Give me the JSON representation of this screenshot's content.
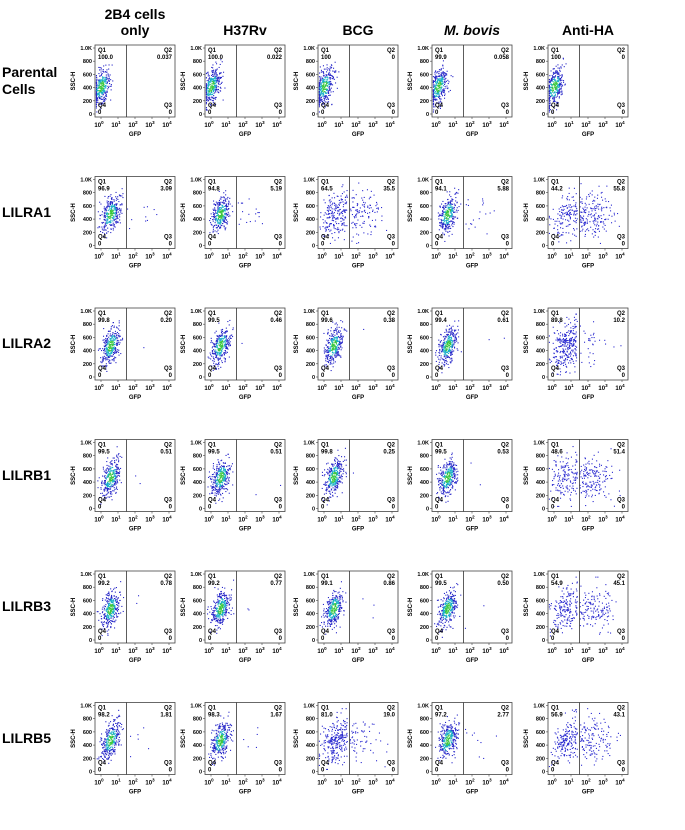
{
  "column_headers": [
    "2B4 cells only",
    "H37Rv",
    "BCG",
    "M. bovis",
    "Anti-HA"
  ],
  "row_labels": [
    "Parental Cells",
    "LILRA1",
    "LILRA2",
    "LILRB1",
    "LILRB3",
    "LILRB5"
  ],
  "axes": {
    "y_label": "SSC-H",
    "x_label": "GFP",
    "yticks": [
      {
        "value": 1000,
        "label": "1.0K"
      },
      800,
      600,
      400,
      200,
      0
    ],
    "xtick_base": "10",
    "xtick_exponents": [
      "0",
      "1",
      "2",
      "3",
      "4"
    ]
  },
  "quadrant_labels": {
    "q1": "Q1",
    "q2": "Q2",
    "q3": "Q3",
    "q4": "Q4"
  },
  "panels": [
    [
      {
        "q1": "100.0",
        "q2": "0.037",
        "q4": "0",
        "q3": "0"
      },
      {
        "q1": "100.0",
        "q2": "0.022",
        "q4": "0",
        "q3": "0"
      },
      {
        "q1": "100",
        "q2": "0",
        "q4": "0",
        "q3": "0"
      },
      {
        "q1": "99.9",
        "q2": "0.058",
        "q4": "0",
        "q3": "0"
      },
      {
        "q1": "100",
        "q2": "0",
        "q4": "0",
        "q3": "0"
      }
    ],
    [
      {
        "q1": "96.9",
        "q2": "3.09",
        "q4": "0",
        "q3": "0"
      },
      {
        "q1": "94.8",
        "q2": "5.19",
        "q4": "0",
        "q3": "0"
      },
      {
        "q1": "64.5",
        "q2": "35.5",
        "q4": "0",
        "q3": "0"
      },
      {
        "q1": "94.1",
        "q2": "5.88",
        "q4": "0",
        "q3": "0"
      },
      {
        "q1": "44.2",
        "q2": "55.8",
        "q4": "0",
        "q3": "0"
      }
    ],
    [
      {
        "q1": "99.8",
        "q2": "0.20",
        "q4": "0",
        "q3": "0"
      },
      {
        "q1": "99.5",
        "q2": "0.46",
        "q4": "0",
        "q3": "0"
      },
      {
        "q1": "99.6",
        "q2": "0.38",
        "q4": "0",
        "q3": "0"
      },
      {
        "q1": "99.4",
        "q2": "0.61",
        "q4": "0",
        "q3": "0"
      },
      {
        "q1": "89.8",
        "q2": "10.2",
        "q4": "0",
        "q3": "0"
      }
    ],
    [
      {
        "q1": "99.5",
        "q2": "0.51",
        "q4": "0",
        "q3": "0"
      },
      {
        "q1": "99.5",
        "q2": "0.51",
        "q4": "0",
        "q3": "0"
      },
      {
        "q1": "99.8",
        "q2": "0.25",
        "q4": "0",
        "q3": "0"
      },
      {
        "q1": "99.5",
        "q2": "0.53",
        "q4": "0",
        "q3": "0"
      },
      {
        "q1": "48.6",
        "q2": "51.4",
        "q4": "0",
        "q3": "0"
      }
    ],
    [
      {
        "q1": "99.2",
        "q2": "0.78",
        "q4": "0",
        "q3": "0"
      },
      {
        "q1": "99.2",
        "q2": "0.77",
        "q4": "0",
        "q3": "0"
      },
      {
        "q1": "99.1",
        "q2": "0.86",
        "q4": "0",
        "q3": "0"
      },
      {
        "q1": "99.5",
        "q2": "0.50",
        "q4": "0",
        "q3": "0"
      },
      {
        "q1": "54.9",
        "q2": "45.1",
        "q4": "0",
        "q3": "0"
      }
    ],
    [
      {
        "q1": "98.2",
        "q2": "1.81",
        "q4": "0",
        "q3": "0"
      },
      {
        "q1": "98.3",
        "q2": "1.67",
        "q4": "0",
        "q3": "0"
      },
      {
        "q1": "81.0",
        "q2": "19.0",
        "q4": "0",
        "q3": "0"
      },
      {
        "q1": "97.2",
        "q2": "2.77",
        "q4": "0",
        "q3": "0"
      },
      {
        "q1": "56.9",
        "q2": "43.1",
        "q4": "0",
        "q3": "0"
      }
    ]
  ]
}
